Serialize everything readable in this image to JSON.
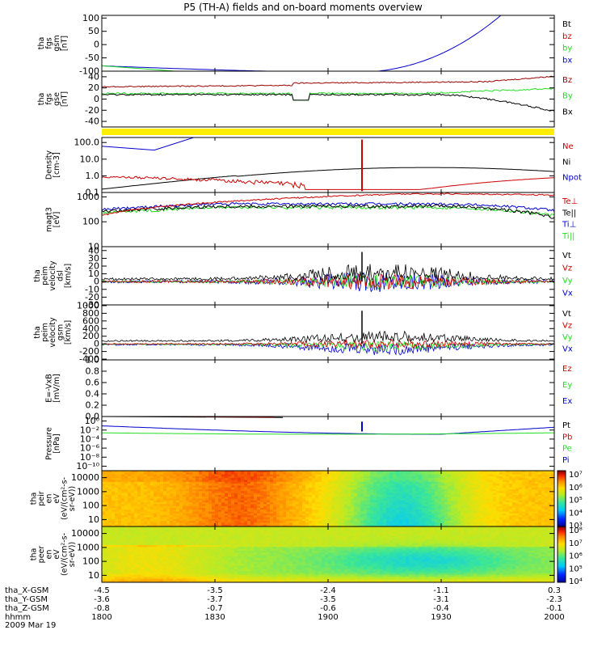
{
  "title": "P5 (TH-A) fields and on-board moments overview",
  "date_label": "2009 Mar 19",
  "colors": {
    "black": "#000000",
    "red": "#cc0000",
    "darkred": "#990000",
    "green": "#22dd22",
    "blue": "#0000cc",
    "yellow": "#ffee00"
  },
  "chart_data": [
    {
      "id": "p1",
      "type": "line",
      "ylabel": [
        "tha",
        "fgs",
        "gsm",
        "[nT]"
      ],
      "yticks": [
        "100",
        "50",
        "0",
        "-50",
        "-100"
      ],
      "ylim": [
        -100,
        110
      ],
      "series": [
        {
          "name": "Bt",
          "color": "#000000"
        },
        {
          "name": "bz",
          "color": "#cc0000"
        },
        {
          "name": "by",
          "color": "#22dd22"
        },
        {
          "name": "bx",
          "color": "#0000cc",
          "values_approx": "-80 at 1800 falling to -105 near 1900, rising steeply above 100 near 1955"
        }
      ]
    },
    {
      "id": "p2",
      "type": "line",
      "ylabel": [
        "tha",
        "fgs",
        "gse",
        "[nT]"
      ],
      "yticks": [
        "40",
        "20",
        "0",
        "-20",
        "-40"
      ],
      "ylim": [
        -50,
        50
      ],
      "series": [
        {
          "name": "Bz",
          "color": "#990000",
          "approx": "~22 to 30 nT rising to ~40"
        },
        {
          "name": "By",
          "color": "#22dd22",
          "approx": "~10 nT"
        },
        {
          "name": "Bx",
          "color": "#000000",
          "approx": "~8 nT falling to ~-20 nT"
        }
      ]
    },
    {
      "id": "p3",
      "type": "line",
      "ylabel": [
        "Density",
        "[cm-3]"
      ],
      "yticks": [
        "100.0",
        "10.0",
        "1.0",
        "0.1"
      ],
      "scale": "log",
      "ylim": [
        0.1,
        200
      ],
      "series": [
        {
          "name": "Ne",
          "color": "#cc0000"
        },
        {
          "name": "Ni",
          "color": "#000000"
        },
        {
          "name": "Npot",
          "color": "#0000cc"
        }
      ]
    },
    {
      "id": "p4",
      "type": "line",
      "ylabel": [
        "magt3",
        "[eV]"
      ],
      "yticks": [
        "1000",
        "100",
        "10"
      ],
      "scale": "log",
      "ylim": [
        10,
        1500
      ],
      "series": [
        {
          "name": "Te⊥",
          "color": "#cc0000"
        },
        {
          "name": "Te||",
          "color": "#000000"
        },
        {
          "name": "Ti⊥",
          "color": "#0000cc"
        },
        {
          "name": "Ti||",
          "color": "#22dd22"
        }
      ]
    },
    {
      "id": "p5",
      "type": "line",
      "ylabel": [
        "tha",
        "peim",
        "velocity",
        "dsl",
        "[km/s]"
      ],
      "yticks": [
        "40",
        "30",
        "20",
        "10",
        "0",
        "-10",
        "-20",
        "-30"
      ],
      "ylim": [
        -30,
        45
      ],
      "series": [
        {
          "name": "Vt",
          "color": "#000000"
        },
        {
          "name": "Vz",
          "color": "#cc0000"
        },
        {
          "name": "Vy",
          "color": "#22dd22"
        },
        {
          "name": "Vx",
          "color": "#0000cc"
        }
      ]
    },
    {
      "id": "p6",
      "type": "line",
      "ylabel": [
        "tha",
        "peim",
        "velocity",
        "gsm",
        "[km/s]"
      ],
      "yticks": [
        "1000",
        "800",
        "600",
        "400",
        "200",
        "0",
        "-200",
        "-400"
      ],
      "ylim": [
        -420,
        1020
      ],
      "series": [
        {
          "name": "Vt",
          "color": "#000000"
        },
        {
          "name": "Vz",
          "color": "#cc0000"
        },
        {
          "name": "Vy",
          "color": "#22dd22"
        },
        {
          "name": "Vx",
          "color": "#0000cc"
        }
      ]
    },
    {
      "id": "p7",
      "type": "line",
      "ylabel": [
        "E=-VxB",
        "[mV/m]"
      ],
      "yticks": [
        "1.0",
        "0.8",
        "0.6",
        "0.4",
        "0.2",
        "0.0"
      ],
      "ylim": [
        0,
        1
      ],
      "series": [
        {
          "name": "Ez",
          "color": "#cc0000"
        },
        {
          "name": "Ey",
          "color": "#22dd22"
        },
        {
          "name": "Ex",
          "color": "#0000cc"
        }
      ]
    },
    {
      "id": "p8",
      "type": "line",
      "ylabel": [
        "Pressure",
        "[nPa]"
      ],
      "yticks": [
        "10⁰",
        "10⁻²",
        "10⁻⁴",
        "10⁻⁶",
        "10⁻⁸",
        "10⁻¹⁰"
      ],
      "scale": "log",
      "series": [
        {
          "name": "Pt",
          "color": "#000000"
        },
        {
          "name": "Pb",
          "color": "#cc0000"
        },
        {
          "name": "Pe",
          "color": "#22dd22"
        },
        {
          "name": "Pi",
          "color": "#0000cc"
        }
      ]
    },
    {
      "id": "p9",
      "type": "heatmap",
      "ylabel": [
        "tha",
        "peir",
        "en",
        "eV",
        "(eV/(cm²-s-",
        "sr-eV))"
      ],
      "yticks": [
        "10000",
        "1000",
        "100",
        "10"
      ],
      "scale": "log",
      "colorbar": [
        "10⁷",
        "10⁶",
        "10⁵",
        "10⁴",
        "10³"
      ]
    },
    {
      "id": "p10",
      "type": "heatmap",
      "ylabel": [
        "tha",
        "peer",
        "en",
        "eV",
        "(eV/(cm²-s-",
        "sr-eV))"
      ],
      "yticks": [
        "10000",
        "1000",
        "100",
        "10"
      ],
      "scale": "log",
      "colorbar": [
        "10⁸",
        "10⁷",
        "10⁶",
        "10⁵",
        "10⁴"
      ]
    }
  ],
  "xaxis": {
    "rows": [
      {
        "label": "tha_X-GSM",
        "values": [
          "-4.5",
          "-3.5",
          "-2.4",
          "-1.1",
          "0.3"
        ]
      },
      {
        "label": "tha_Y-GSM",
        "values": [
          "-3.6",
          "-3.7",
          "-3.5",
          "-3.1",
          "-2.3"
        ]
      },
      {
        "label": "tha_Z-GSM",
        "values": [
          "-0.8",
          "-0.7",
          "-0.6",
          "-0.4",
          "-0.1"
        ]
      },
      {
        "label": "hhmm",
        "values": [
          "1800",
          "1830",
          "1900",
          "1930",
          "2000"
        ]
      }
    ]
  }
}
